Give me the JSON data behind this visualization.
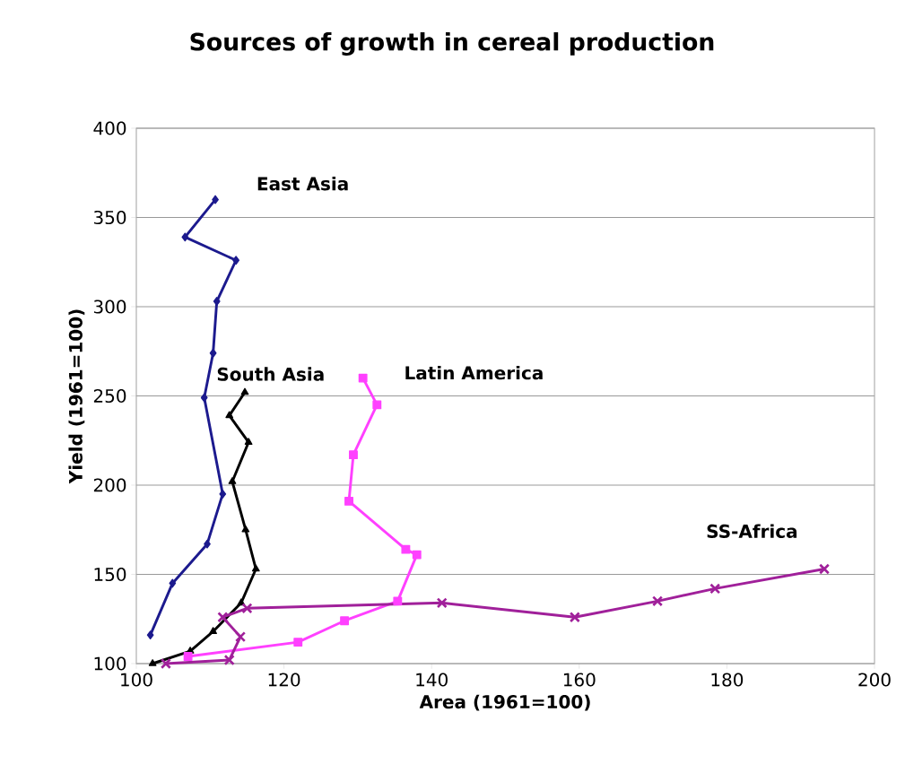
{
  "chart_data": {
    "type": "line",
    "title": "Sources of growth in cereal production",
    "xlabel": "Area (1961=100)",
    "ylabel": "Yield (1961=100)",
    "xlim": [
      100,
      200
    ],
    "ylim": [
      100,
      400
    ],
    "xticks": [
      100,
      120,
      140,
      160,
      180,
      200
    ],
    "yticks": [
      100,
      150,
      200,
      250,
      300,
      350,
      400
    ],
    "grid": "y",
    "series": [
      {
        "name": "East Asia",
        "color": "#1c1a8e",
        "marker": "diamond",
        "x": [
          101.9,
          104.9,
          109.6,
          111.7,
          109.2,
          110.4,
          110.9,
          113.5,
          106.6,
          110.7
        ],
        "values": [
          116,
          145,
          167,
          195,
          249,
          274,
          303,
          326,
          339,
          360
        ]
      },
      {
        "name": "South Asia",
        "color": "#000000",
        "marker": "triangle",
        "x": [
          102.2,
          107.3,
          110.4,
          114.2,
          116.2,
          114.8,
          113,
          115.2,
          112.6,
          114.7
        ],
        "values": [
          100,
          107,
          118,
          134,
          153,
          175,
          202,
          224,
          239,
          252
        ]
      },
      {
        "name": "Latin America",
        "color": "#ff40ff",
        "marker": "square",
        "x": [
          107,
          121.9,
          128.2,
          135.4,
          138,
          136.5,
          128.8,
          129.4,
          132.6,
          130.7
        ],
        "values": [
          104,
          112,
          124,
          135,
          161,
          164,
          191,
          217,
          245,
          260
        ]
      },
      {
        "name": "SS-Africa",
        "color": "#a0209a",
        "marker": "cross",
        "x": [
          104,
          112.6,
          114.1,
          111.7,
          115,
          141.4,
          159.4,
          170.6,
          178.4,
          193.2
        ],
        "values": [
          100,
          102,
          115,
          126,
          131,
          134,
          126,
          135,
          142,
          153
        ]
      }
    ]
  }
}
